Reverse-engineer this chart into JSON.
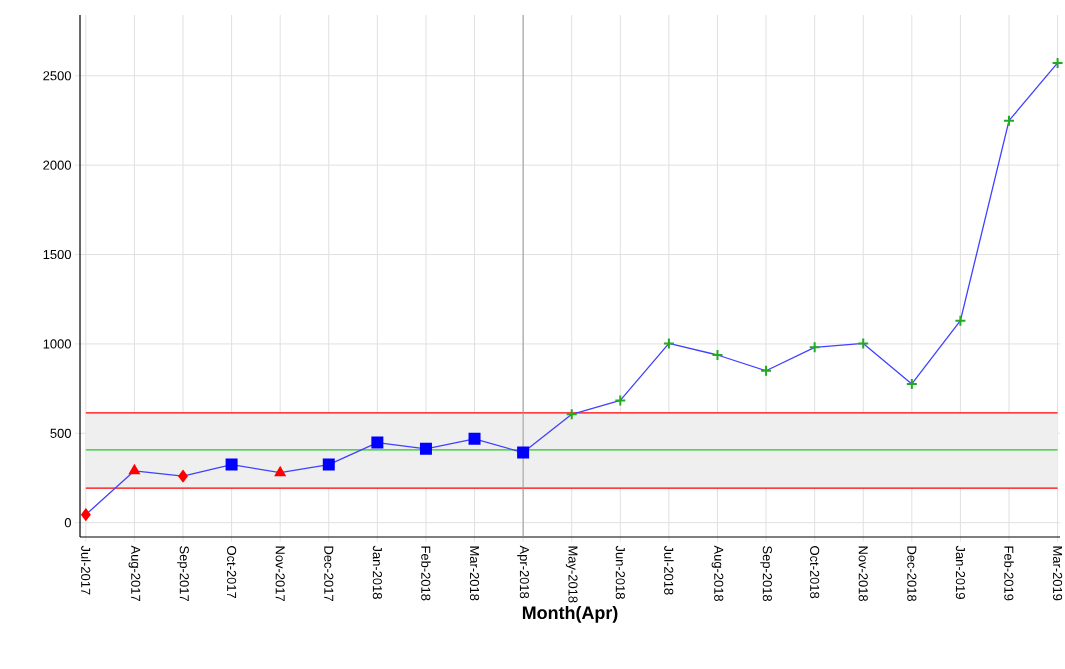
{
  "chart_data": {
    "type": "line",
    "xlabel": "Month(Apr)",
    "categories": [
      "Jul-2017",
      "Aug-2017",
      "Sep-2017",
      "Oct-2017",
      "Nov-2017",
      "Dec-2017",
      "Jan-2018",
      "Feb-2018",
      "Mar-2018",
      "Apr-2018",
      "May-2018",
      "Jun-2018",
      "Jul-2018",
      "Aug-2018",
      "Sep-2018",
      "Oct-2018",
      "Nov-2018",
      "Dec-2018",
      "Jan-2019",
      "Feb-2019",
      "Mar-2019"
    ],
    "series": [
      {
        "color": "#4040ff",
        "marker": "none",
        "line_style": "solid",
        "values": [
          45,
          290,
          260,
          325,
          280,
          325,
          448,
          413,
          469,
          392,
          606,
          684,
          1003,
          938,
          850,
          981,
          1003,
          776,
          1130,
          2249,
          2572
        ]
      },
      {
        "type": "scatter",
        "color": "#ff0000",
        "marker": "diamond",
        "x": [
          "Jul-2017",
          "Sep-2017"
        ],
        "values": [
          45,
          260
        ]
      },
      {
        "type": "scatter",
        "color": "#ff0000",
        "marker": "triangle",
        "x": [
          "Aug-2017",
          "Nov-2017"
        ],
        "values": [
          290,
          280
        ]
      },
      {
        "type": "scatter",
        "color": "#0000ff",
        "marker": "square",
        "x": [
          "Oct-2017",
          "Dec-2017",
          "Jan-2018",
          "Feb-2018",
          "Mar-2018",
          "Apr-2018"
        ],
        "values": [
          325,
          325,
          448,
          413,
          469,
          392
        ]
      },
      {
        "type": "scatter",
        "color": "#22aa22",
        "marker": "cross",
        "x": [
          "May-2018",
          "Jun-2018",
          "Jul-2018",
          "Aug-2018",
          "Sep-2018",
          "Oct-2018",
          "Nov-2018",
          "Dec-2018",
          "Jan-2019",
          "Feb-2019",
          "Mar-2019"
        ],
        "values": [
          606,
          684,
          1003,
          938,
          850,
          981,
          1003,
          776,
          1130,
          2249,
          2572
        ]
      }
    ],
    "ylim": [
      -80,
      2840
    ],
    "yticks": [
      0,
      500,
      1000,
      1500,
      2000,
      2500
    ],
    "grid": true,
    "bands": [
      {
        "axis": "y",
        "from": 193,
        "to": 614,
        "color": "#efefef"
      }
    ],
    "ref_lines": [
      {
        "axis": "y",
        "value": 614,
        "color": "#ff0000"
      },
      {
        "axis": "y",
        "value": 407,
        "color": "#22cc22"
      },
      {
        "axis": "y",
        "value": 193,
        "color": "#ff0000"
      },
      {
        "axis": "x",
        "value": "Apr-2018",
        "color": "#999999"
      }
    ]
  }
}
